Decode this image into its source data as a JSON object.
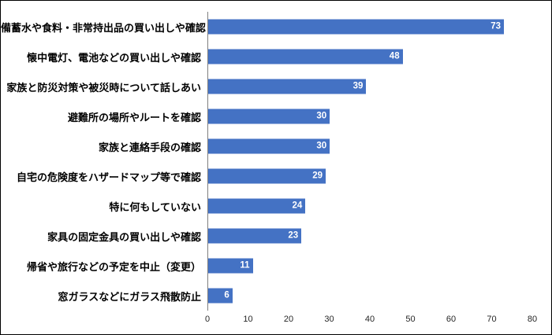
{
  "chart_data": {
    "type": "bar",
    "orientation": "horizontal",
    "title": "",
    "xlabel": "",
    "ylabel": "",
    "categories": [
      "備蓄水や食料・非常持出品の買い出しや確認",
      "懐中電灯、電池などの買い出しや確認",
      "家族と防災対策や被災時について話しあい",
      "避難所の場所やルートを確認",
      "家族と連絡手段の確認",
      "自宅の危険度をハザードマップ等で確認",
      "特に何もしていない",
      "家具の固定金具の買い出しや確認",
      "帰省や旅行などの予定を中止（変更）",
      "窓ガラスなどにガラス飛散防止"
    ],
    "values": [
      73,
      48,
      39,
      30,
      30,
      29,
      24,
      23,
      11,
      6
    ],
    "xlim": [
      0,
      80
    ],
    "xticks": [
      0,
      10,
      20,
      30,
      40,
      50,
      60,
      70,
      80
    ],
    "bar_color": "#4472C4",
    "value_label_color": "#FFFFFF",
    "axis_line_color": "#7F7F7F",
    "grid": false,
    "legend_position": "none"
  }
}
